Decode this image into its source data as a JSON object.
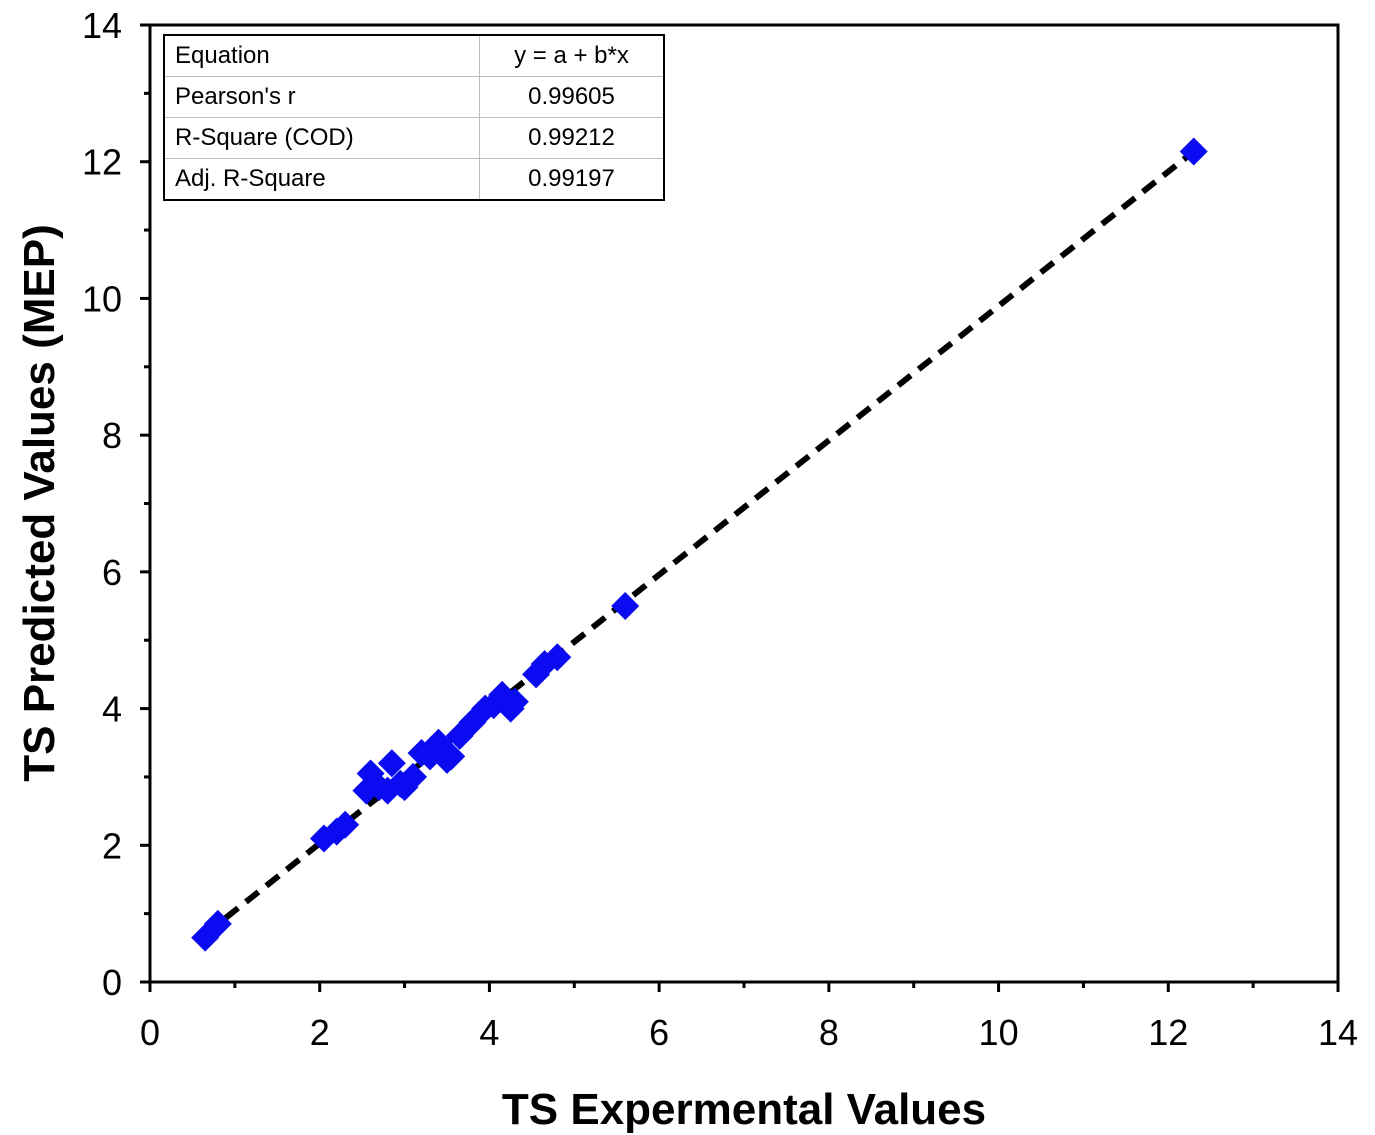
{
  "chart_data": {
    "type": "scatter",
    "title": "",
    "xlabel": "TS Expermental Values",
    "ylabel": "TS Predicted Values (MEP)",
    "xlim": [
      0,
      14
    ],
    "ylim": [
      0,
      14
    ],
    "xticks": [
      "0",
      "2",
      "4",
      "6",
      "8",
      "10",
      "12",
      "14"
    ],
    "yticks": [
      "0",
      "2",
      "4",
      "6",
      "8",
      "10",
      "12",
      "14"
    ],
    "grid": false,
    "marker_color": "#0b0bf2",
    "marker": "diamond",
    "series": [
      {
        "name": "TS",
        "x": [
          0.65,
          0.8,
          2.05,
          2.2,
          2.3,
          2.55,
          2.6,
          2.7,
          2.8,
          2.85,
          2.95,
          3.0,
          3.1,
          3.2,
          3.3,
          3.4,
          3.5,
          3.55,
          3.65,
          3.8,
          3.95,
          4.05,
          4.15,
          4.25,
          4.3,
          4.55,
          4.65,
          4.8,
          5.6,
          12.3
        ],
        "y": [
          0.65,
          0.85,
          2.1,
          2.2,
          2.3,
          2.8,
          3.05,
          2.85,
          2.8,
          3.2,
          2.9,
          2.85,
          3.0,
          3.35,
          3.3,
          3.5,
          3.25,
          3.3,
          3.6,
          3.8,
          4.0,
          4.05,
          4.2,
          4.0,
          4.1,
          4.5,
          4.65,
          4.75,
          5.5,
          12.15
        ]
      }
    ],
    "fit_line": {
      "style": "dashed",
      "color": "#000000",
      "x": [
        0.65,
        12.3
      ],
      "y": [
        0.7,
        12.15
      ]
    },
    "stats_table": [
      {
        "label": "Equation",
        "value": "y = a + b*x"
      },
      {
        "label": "Pearson's r",
        "value": "0.99605"
      },
      {
        "label": "R-Square (COD)",
        "value": "0.99212"
      },
      {
        "label": "Adj. R-Square",
        "value": "0.99197"
      }
    ]
  }
}
